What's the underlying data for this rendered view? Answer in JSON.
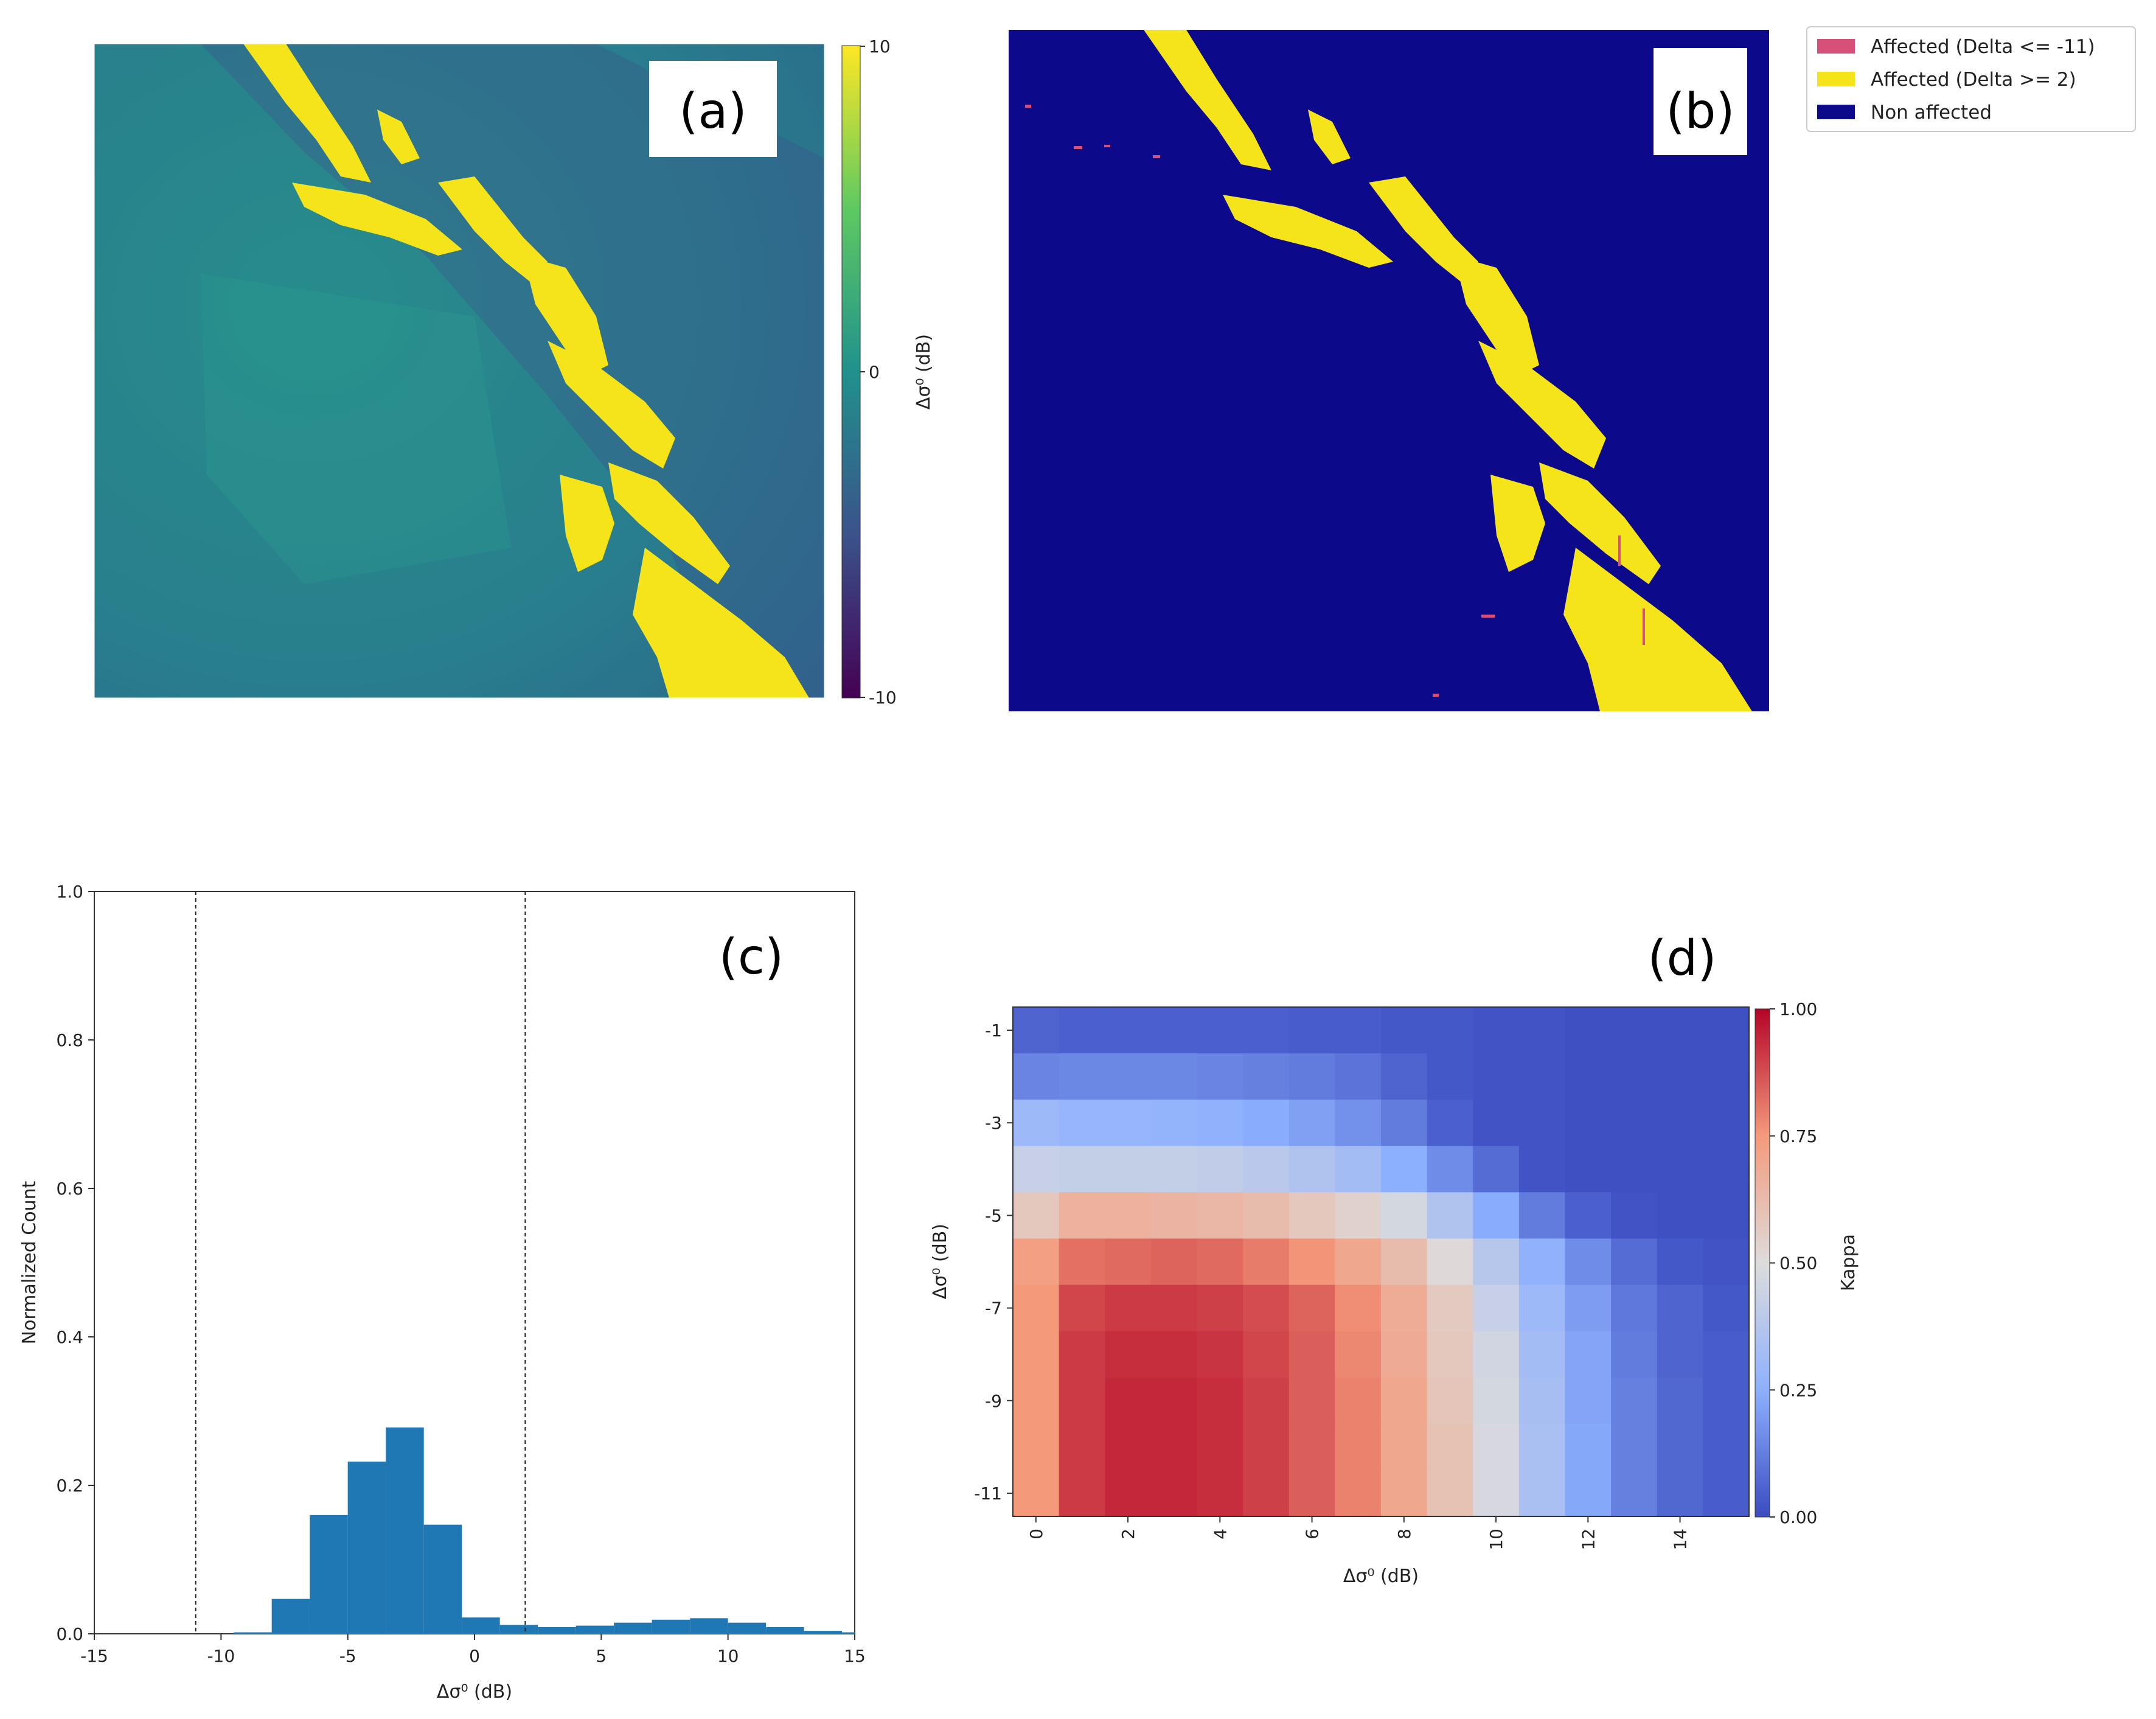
{
  "colors": {
    "flood_yellow": "#f5e41a",
    "map_background": "#0c0a8a",
    "affected_negative": "#d6507a",
    "histogram_bar": "#1f77b4",
    "viridis_low": "#440154",
    "viridis_mid": "#21918c",
    "viridis_high": "#fde725"
  },
  "chart_data": [
    {
      "panel": "a",
      "type": "heatmap",
      "panel_label": "(a)",
      "description_icon": "sar-difference-image",
      "colorbar": {
        "label": "Δσ⁰ (dB)",
        "min": -10,
        "max": 10,
        "ticks": [
          "10",
          "0",
          "-10"
        ],
        "colormap": "viridis"
      }
    },
    {
      "panel": "b",
      "type": "heatmap",
      "panel_label": "(b)",
      "description_icon": "flood-classification-map",
      "legend": [
        {
          "label": "Affected (Delta <= -11)",
          "color": "#d6507a"
        },
        {
          "label": "Affected (Delta >= 2)",
          "color": "#f5e41a"
        },
        {
          "label": "Non affected",
          "color": "#0c0a8a"
        }
      ]
    },
    {
      "panel": "c",
      "type": "bar",
      "panel_label": "(c)",
      "xlabel": "Δσ⁰ (dB)",
      "ylabel": "Normalized Count",
      "xlim": [
        -15,
        15
      ],
      "ylim": [
        0,
        1.0
      ],
      "x_ticks": [
        "-15",
        "-10",
        "-5",
        "0",
        "5",
        "10",
        "15"
      ],
      "y_ticks": [
        "0.0",
        "0.2",
        "0.4",
        "0.6",
        "0.8",
        "1.0"
      ],
      "threshold_lines": [
        -11,
        2
      ],
      "bin_edges": [
        -11.0,
        -9.5,
        -8.0,
        -6.5,
        -5.0,
        -3.5,
        -2.0,
        -0.5,
        1.0,
        2.5,
        4.0,
        5.5,
        7.0,
        8.5,
        10.0,
        11.5,
        13.0,
        14.5,
        15.0
      ],
      "values": [
        0.0,
        0.002,
        0.047,
        0.16,
        0.232,
        0.278,
        0.147,
        0.022,
        0.012,
        0.009,
        0.011,
        0.015,
        0.019,
        0.021,
        0.015,
        0.009,
        0.004,
        0.002
      ]
    },
    {
      "panel": "d",
      "type": "heatmap",
      "panel_label": "(d)",
      "xlabel": "Δσ⁰ (dB)",
      "ylabel": "Δσ⁰ (dB)",
      "x_values": [
        0,
        1,
        2,
        3,
        4,
        5,
        6,
        7,
        8,
        9,
        10,
        11,
        12,
        13,
        14,
        15
      ],
      "y_values": [
        -1,
        -2,
        -3,
        -4,
        -5,
        -6,
        -7,
        -8,
        -9,
        -10,
        -11
      ],
      "x_ticks": [
        "0",
        "2",
        "4",
        "6",
        "8",
        "10",
        "12",
        "14"
      ],
      "y_ticks": [
        "-1",
        "-3",
        "-5",
        "-7",
        "-9",
        "-11"
      ],
      "colorbar": {
        "label": "Kappa",
        "min": 0.0,
        "max": 1.0,
        "ticks": [
          "1.00",
          "0.75",
          "0.50",
          "0.25",
          "0.00"
        ],
        "colormap": "coolwarm"
      },
      "kappa": [
        [
          0.06,
          0.05,
          0.05,
          0.05,
          0.05,
          0.05,
          0.04,
          0.04,
          0.03,
          0.03,
          0.02,
          0.02,
          0.01,
          0.01,
          0.01,
          0.01
        ],
        [
          0.14,
          0.15,
          0.15,
          0.15,
          0.14,
          0.13,
          0.12,
          0.1,
          0.06,
          0.03,
          0.02,
          0.02,
          0.01,
          0.01,
          0.01,
          0.01
        ],
        [
          0.3,
          0.28,
          0.28,
          0.27,
          0.26,
          0.24,
          0.21,
          0.17,
          0.12,
          0.05,
          0.02,
          0.02,
          0.01,
          0.01,
          0.01,
          0.01
        ],
        [
          0.43,
          0.42,
          0.42,
          0.42,
          0.41,
          0.39,
          0.36,
          0.32,
          0.25,
          0.16,
          0.08,
          0.02,
          0.01,
          0.01,
          0.01,
          0.01
        ],
        [
          0.58,
          0.66,
          0.66,
          0.65,
          0.64,
          0.62,
          0.58,
          0.54,
          0.47,
          0.36,
          0.24,
          0.12,
          0.05,
          0.02,
          0.01,
          0.01
        ],
        [
          0.73,
          0.82,
          0.83,
          0.84,
          0.83,
          0.8,
          0.76,
          0.7,
          0.62,
          0.51,
          0.38,
          0.26,
          0.16,
          0.08,
          0.03,
          0.02
        ],
        [
          0.75,
          0.89,
          0.91,
          0.91,
          0.9,
          0.88,
          0.84,
          0.77,
          0.68,
          0.57,
          0.43,
          0.3,
          0.2,
          0.11,
          0.06,
          0.03
        ],
        [
          0.75,
          0.91,
          0.93,
          0.93,
          0.92,
          0.89,
          0.85,
          0.78,
          0.69,
          0.58,
          0.46,
          0.32,
          0.22,
          0.12,
          0.06,
          0.04
        ],
        [
          0.75,
          0.91,
          0.94,
          0.94,
          0.93,
          0.9,
          0.85,
          0.79,
          0.7,
          0.59,
          0.47,
          0.33,
          0.22,
          0.13,
          0.07,
          0.04
        ],
        [
          0.75,
          0.91,
          0.94,
          0.94,
          0.93,
          0.9,
          0.85,
          0.79,
          0.7,
          0.6,
          0.48,
          0.34,
          0.23,
          0.13,
          0.07,
          0.04
        ],
        [
          0.75,
          0.91,
          0.94,
          0.94,
          0.93,
          0.9,
          0.85,
          0.79,
          0.7,
          0.6,
          0.48,
          0.34,
          0.23,
          0.13,
          0.07,
          0.04
        ]
      ]
    }
  ]
}
